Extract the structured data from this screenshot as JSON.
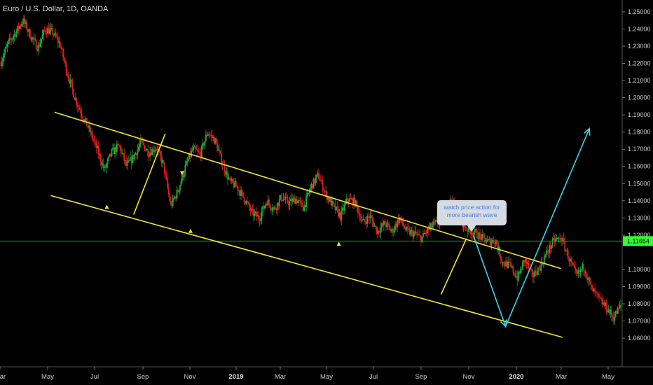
{
  "header": {
    "title": "Euro / U.S. Dollar, 1D, OANDA"
  },
  "note": {
    "lines": [
      "watch price action for",
      "more bearish wave"
    ]
  },
  "chart_data": {
    "type": "candlestick",
    "symbol": "EUR/USD",
    "interval": "1D",
    "source": "OANDA",
    "x_ticks": [
      "Mar",
      "May",
      "Jul",
      "Sep",
      "Nov",
      "2019",
      "Mar",
      "May",
      "Jul",
      "Sep",
      "Nov",
      "2020",
      "Mar",
      "May"
    ],
    "x_tick_bold": [
      "2019",
      "2020"
    ],
    "y_ticks": [
      "1.25000",
      "1.24000",
      "1.23000",
      "1.22000",
      "1.21000",
      "1.20000",
      "1.19000",
      "1.18000",
      "1.17000",
      "1.16000",
      "1.15000",
      "1.14000",
      "1.13000",
      "1.12000",
      "1.10000",
      "1.09000",
      "1.08000",
      "1.07000",
      "1.06000"
    ],
    "ylim": [
      1.058,
      1.252
    ],
    "last_price": "1.11654",
    "colors": {
      "up": "#1fae3a",
      "down": "#e01e1e",
      "channel": "#f2e52c",
      "projection": "#35d6ea",
      "price_line": "#1f9a2a",
      "badge": "#33ff33"
    },
    "price_path": [
      1.221,
      1.232,
      1.238,
      1.245,
      1.236,
      1.229,
      1.24,
      1.238,
      1.231,
      1.214,
      1.2,
      1.19,
      1.181,
      1.17,
      1.158,
      1.168,
      1.172,
      1.16,
      1.166,
      1.174,
      1.168,
      1.171,
      1.161,
      1.137,
      1.146,
      1.16,
      1.17,
      1.167,
      1.18,
      1.175,
      1.162,
      1.151,
      1.148,
      1.141,
      1.133,
      1.13,
      1.14,
      1.135,
      1.142,
      1.139,
      1.141,
      1.136,
      1.148,
      1.155,
      1.144,
      1.137,
      1.131,
      1.141,
      1.139,
      1.127,
      1.131,
      1.122,
      1.127,
      1.122,
      1.13,
      1.122,
      1.121,
      1.118,
      1.124,
      1.127,
      1.129,
      1.141,
      1.131,
      1.124,
      1.122,
      1.119,
      1.116,
      1.117,
      1.104,
      1.102,
      1.095,
      1.106,
      1.096,
      1.101,
      1.11,
      1.117,
      1.118,
      1.106,
      1.096,
      1.102,
      1.089,
      1.083,
      1.078,
      1.072,
      1.079
    ],
    "lines": [
      {
        "kind": "channel-upper",
        "points": [
          [
            "2018-05-10",
            1.1915
          ],
          [
            "2020-02-28",
            1.1005
          ]
        ]
      },
      {
        "kind": "channel-lower",
        "points": [
          [
            "2018-05-05",
            1.143
          ],
          [
            "2020-03-01",
            1.0605
          ]
        ]
      },
      {
        "kind": "trend",
        "points": [
          [
            "2018-08-21",
            1.132
          ],
          [
            "2018-10-01",
            1.179
          ]
        ]
      },
      {
        "kind": "trend",
        "points": [
          [
            "2019-09-25",
            1.0855
          ],
          [
            "2019-10-28",
            1.118
          ]
        ]
      },
      {
        "kind": "projection",
        "points": [
          [
            "2019-11-06",
            1.1198
          ],
          [
            "2019-12-18",
            1.0668
          ],
          [
            "2020-04-05",
            1.182
          ]
        ]
      }
    ],
    "markers": [
      {
        "date": "2018-07-17",
        "price": 1.1365,
        "dir": "up"
      },
      {
        "date": "2018-10-23",
        "price": 1.156,
        "dir": "down"
      },
      {
        "date": "2018-11-03",
        "price": 1.1225,
        "dir": "up"
      },
      {
        "date": "2019-05-15",
        "price": 1.115,
        "dir": "up"
      }
    ],
    "grid": false,
    "legend": "none"
  }
}
